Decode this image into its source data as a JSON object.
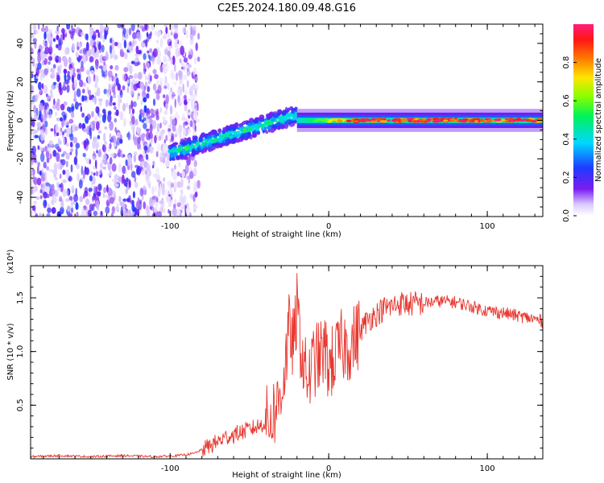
{
  "title": "C2E5.2024.180.09.48.G16",
  "colorbar": {
    "label": "Normalized spectral amplitude",
    "ticks": [
      "0.0",
      "0.2",
      "0.4",
      "0.6",
      "0.8"
    ],
    "range": [
      0,
      1
    ]
  },
  "chart_data": [
    {
      "type": "heatmap",
      "panel": "spectrogram",
      "xlabel": "Height of straight line (km)",
      "ylabel": "Frequency (Hz)",
      "xlim": [
        -188,
        135
      ],
      "ylim": [
        -50,
        50
      ],
      "xticks": [
        "-100",
        "0",
        "100"
      ],
      "yticks": [
        "-40",
        "-20",
        "0",
        "20",
        "40"
      ],
      "features": {
        "noise_region_x": [
          -188,
          -90
        ],
        "dispersion_x": [
          -100,
          -20
        ],
        "dispersion_freq_start": -17,
        "dispersion_freq_end": 3,
        "tone_freq": 0,
        "tone_x": [
          -20,
          135
        ]
      }
    },
    {
      "type": "line",
      "panel": "snr",
      "xlabel": "Height of straight line (km)",
      "ylabel": "SNR (10 * v/v)",
      "multiplier": "(x10⁴)",
      "xlim": [
        -188,
        135
      ],
      "ylim": [
        0,
        1.8
      ],
      "xticks": [
        "-100",
        "0",
        "100"
      ],
      "yticks": [
        "0.5",
        "1.0",
        "1.5"
      ],
      "color": "#e8372f",
      "series": [
        {
          "x": [
            -188,
            -170,
            -150,
            -130,
            -110,
            -95,
            -85,
            -75,
            -65,
            -55,
            -45,
            -38,
            -32,
            -28,
            -25,
            -22,
            -20,
            -18,
            -15,
            -12,
            -10,
            -6,
            -2,
            0,
            4,
            8,
            12,
            16,
            20,
            25,
            30,
            35,
            40,
            45,
            50,
            60,
            70,
            80,
            90,
            100,
            110,
            120,
            130,
            135
          ],
          "y": [
            0.02,
            0.03,
            0.02,
            0.03,
            0.02,
            0.03,
            0.05,
            0.12,
            0.2,
            0.25,
            0.3,
            0.35,
            0.5,
            0.8,
            1.2,
            1.05,
            1.4,
            1.1,
            0.8,
            0.75,
            0.9,
            0.95,
            1.0,
            0.85,
            0.95,
            1.05,
            1.05,
            1.1,
            1.2,
            1.3,
            1.35,
            1.4,
            1.42,
            1.45,
            1.44,
            1.45,
            1.47,
            1.46,
            1.42,
            1.38,
            1.36,
            1.33,
            1.3,
            1.28
          ]
        }
      ]
    }
  ]
}
